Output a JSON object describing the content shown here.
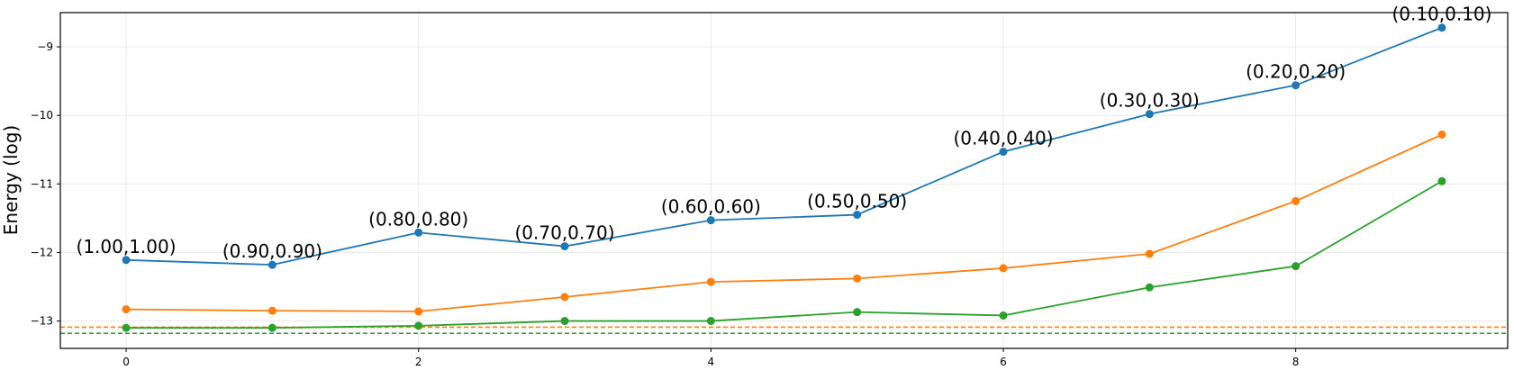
{
  "chart_data": {
    "type": "line",
    "title": "",
    "xlabel": "",
    "ylabel": "Energy (log)",
    "xlim": [
      -0.45,
      9.45
    ],
    "ylim": [
      -13.4,
      -8.5
    ],
    "xticks": [
      0,
      2,
      4,
      6,
      8
    ],
    "yticks": [
      -13,
      -12,
      -11,
      -10,
      -9
    ],
    "xtick_labels": [
      "0",
      "2",
      "4",
      "6",
      "8"
    ],
    "ytick_labels": [
      "−13",
      "−12",
      "−11",
      "−10",
      "−9"
    ],
    "grid": true,
    "x": [
      0,
      1,
      2,
      3,
      4,
      5,
      6,
      7,
      8,
      9
    ],
    "series": [
      {
        "color": "#1f77b4",
        "values": [
          -12.11,
          -12.18,
          -11.71,
          -11.91,
          -11.53,
          -11.45,
          -10.53,
          -9.98,
          -9.56,
          -8.72
        ],
        "point_labels": [
          "(1.00,1.00)",
          "(0.90,0.90)",
          "(0.80,0.80)",
          "(0.70,0.70)",
          "(0.60,0.60)",
          "(0.50,0.50)",
          "(0.40,0.40)",
          "(0.30,0.30)",
          "(0.20,0.20)",
          "(0.10,0.10)"
        ],
        "baseline": -13.18
      },
      {
        "color": "#ff7f0e",
        "values": [
          -12.83,
          -12.85,
          -12.86,
          -12.65,
          -12.43,
          -12.38,
          -12.23,
          -12.02,
          -11.25,
          -10.28
        ],
        "point_labels": [],
        "baseline": -13.09
      },
      {
        "color": "#2ca02c",
        "values": [
          -13.1,
          -13.1,
          -13.07,
          -13.0,
          -13.0,
          -12.87,
          -12.92,
          -12.51,
          -12.2,
          -10.96
        ],
        "point_labels": [],
        "baseline": -13.18
      }
    ]
  }
}
